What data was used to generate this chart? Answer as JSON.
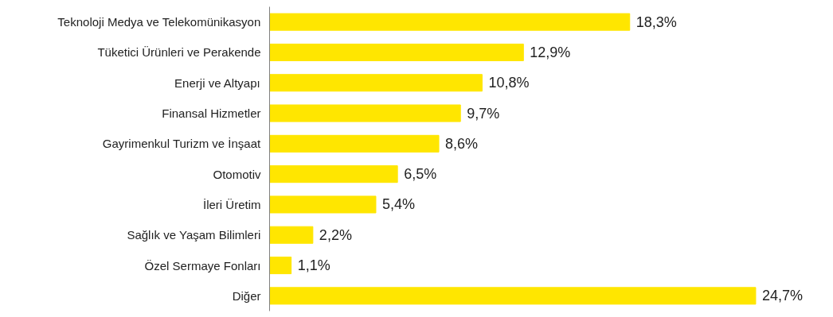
{
  "chart_data": {
    "type": "bar",
    "orientation": "horizontal",
    "categories": [
      "Teknoloji Medya ve Telekomünikasyon",
      "Tüketici Ürünleri ve Perakende",
      "Enerji ve Altyapı",
      "Finansal Hizmetler",
      "Gayrimenkul Turizm ve İnşaat",
      "Otomotiv",
      "İleri Üretim",
      "Sağlık ve Yaşam Bilimleri",
      "Özel Sermaye Fonları",
      "Diğer"
    ],
    "values": [
      18.3,
      12.9,
      10.8,
      9.7,
      8.6,
      6.5,
      5.4,
      2.2,
      1.1,
      24.7
    ],
    "value_labels": [
      "18,3%",
      "12,9%",
      "10,8%",
      "9,7%",
      "8,6%",
      "6,5%",
      "5,4%",
      "2,2%",
      "1,1%",
      "24,7%"
    ],
    "color": "#ffe600",
    "grid": false
  }
}
